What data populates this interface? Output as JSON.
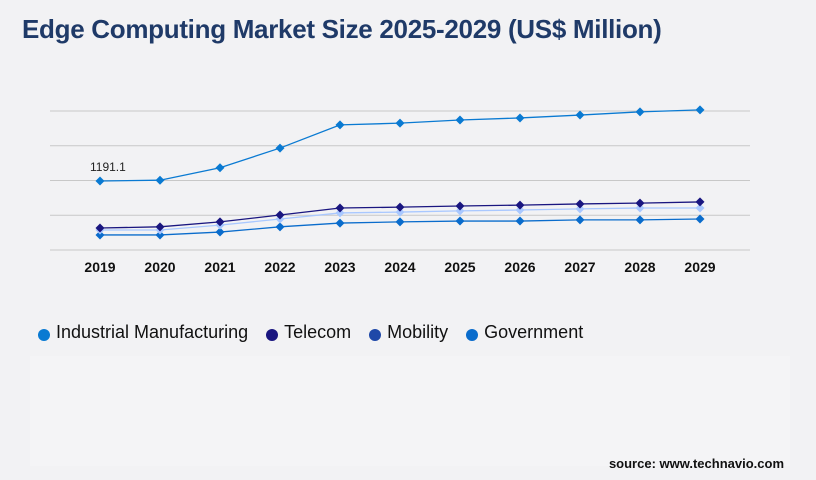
{
  "title": "Edge Computing Market Size 2025-2029 (US$ Million)",
  "source": "source: www.technavio.com",
  "chart_data": {
    "type": "line",
    "title": "Edge Computing Market Size 2025-2029 (US$ Million)",
    "categories": [
      "2019",
      "2020",
      "2021",
      "2022",
      "2023",
      "2024",
      "2025",
      "2026",
      "2027",
      "2028",
      "2029"
    ],
    "ylim": [
      0,
      2400
    ],
    "grid": true,
    "legend_placement": "bottom",
    "annotations": [
      {
        "series": "Industrial Manufacturing",
        "category": "2019",
        "text": "1191.1"
      }
    ],
    "series": [
      {
        "name": "Industrial Manufacturing",
        "color": "#0a7ad2",
        "legend_color": "#0a7ad2",
        "values": [
          1191.1,
          1205,
          1420,
          1760,
          2160,
          2190,
          2245,
          2280,
          2330,
          2385,
          2420
        ]
      },
      {
        "name": "Telecom",
        "color": "#1a1680",
        "legend_color": "#1a1680",
        "values": [
          380,
          400,
          485,
          605,
          725,
          740,
          760,
          775,
          795,
          810,
          830
        ]
      },
      {
        "name": "Mobility",
        "color": "#a9c8ff",
        "legend_color": "#1e48a8",
        "values": [
          345,
          345,
          430,
          535,
          640,
          655,
          675,
          690,
          710,
          725,
          725
        ]
      },
      {
        "name": "Government",
        "color": "#0a6ccc",
        "legend_color": "#0a6ccc",
        "values": [
          260,
          260,
          310,
          400,
          465,
          485,
          500,
          500,
          520,
          520,
          535
        ]
      }
    ]
  }
}
